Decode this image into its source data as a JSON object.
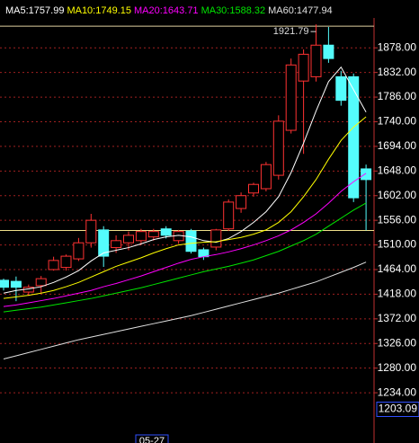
{
  "chart_data": {
    "type": "candlestick",
    "ylim": [
      1162,
      1922
    ],
    "yticks": [
      {
        "value": 1878,
        "label": "1878.00"
      },
      {
        "value": 1832,
        "label": "1832.00"
      },
      {
        "value": 1786,
        "label": "1786.00"
      },
      {
        "value": 1740,
        "label": "1740.00"
      },
      {
        "value": 1694,
        "label": "1694.00"
      },
      {
        "value": 1648,
        "label": "1648.00"
      },
      {
        "value": 1602,
        "label": "1602.00"
      },
      {
        "value": 1556,
        "label": "1556.00"
      },
      {
        "value": 1510,
        "label": "1510.00"
      },
      {
        "value": 1464,
        "label": "1464.00"
      },
      {
        "value": 1418,
        "label": "1418.00"
      },
      {
        "value": 1372,
        "label": "1372.00"
      },
      {
        "value": 1326,
        "label": "1326.00"
      },
      {
        "value": 1280,
        "label": "1280.00"
      },
      {
        "value": 1234,
        "label": "1234.00"
      }
    ],
    "grid": true,
    "up_color": "#ff3232",
    "down_color": "#54fcfc",
    "high_marker": 1921.79,
    "low_marker": 1203.09,
    "ref_line": 1537,
    "x_label": "05-27",
    "x_label_index": 10,
    "candles": {
      "open": [
        1444,
        1442,
        1422,
        1434,
        1464,
        1468,
        1484,
        1514,
        1538,
        1505,
        1514,
        1518,
        1525,
        1540,
        1518,
        1536,
        1501,
        1506,
        1540,
        1578,
        1607,
        1615,
        1640,
        1724,
        1816,
        1824,
        1883,
        1824,
        1824,
        1652
      ],
      "close": [
        1431,
        1431,
        1431,
        1447,
        1481,
        1489,
        1514,
        1556,
        1489,
        1518,
        1528,
        1535,
        1535,
        1528,
        1535,
        1498,
        1488,
        1538,
        1590,
        1602,
        1623,
        1660,
        1741,
        1846,
        1866,
        1883,
        1858,
        1780,
        1598,
        1632
      ],
      "high": [
        1447,
        1451,
        1436,
        1452,
        1488,
        1492,
        1523,
        1568,
        1545,
        1528,
        1535,
        1540,
        1540,
        1545,
        1538,
        1540,
        1505,
        1540,
        1595,
        1608,
        1626,
        1665,
        1752,
        1858,
        1875,
        1921.79,
        1917,
        1835,
        1830,
        1660
      ],
      "low": [
        1425,
        1405,
        1415,
        1420,
        1462,
        1462,
        1480,
        1505,
        1469,
        1495,
        1500,
        1510,
        1518,
        1522,
        1512,
        1494,
        1482,
        1500,
        1536,
        1570,
        1600,
        1610,
        1632,
        1718,
        1680,
        1815,
        1850,
        1770,
        1590,
        1537
      ]
    },
    "series": [
      {
        "name": "MA5:1757.99",
        "color": "#ffffff",
        "values": [
          1420,
          1425,
          1428,
          1432,
          1440,
          1450,
          1462,
          1480,
          1495,
          1500,
          1505,
          1512,
          1520,
          1525,
          1528,
          1525,
          1518,
          1515,
          1522,
          1535,
          1552,
          1572,
          1600,
          1645,
          1700,
          1760,
          1815,
          1842,
          1800,
          1757.99
        ]
      },
      {
        "name": "MA10:1749.15",
        "color": "#ffff00",
        "values": [
          1410,
          1413,
          1416,
          1420,
          1425,
          1432,
          1440,
          1450,
          1460,
          1470,
          1478,
          1486,
          1495,
          1503,
          1510,
          1513,
          1515,
          1516,
          1520,
          1524,
          1530,
          1538,
          1552,
          1572,
          1600,
          1632,
          1670,
          1705,
          1730,
          1749.15
        ]
      },
      {
        "name": "MA20:1643.71",
        "color": "#ff00ff",
        "values": [
          1395,
          1398,
          1402,
          1406,
          1410,
          1415,
          1420,
          1425,
          1432,
          1438,
          1445,
          1452,
          1460,
          1468,
          1476,
          1483,
          1488,
          1492,
          1497,
          1503,
          1510,
          1518,
          1527,
          1538,
          1552,
          1568,
          1588,
          1610,
          1628,
          1643.71
        ]
      },
      {
        "name": "MA30:1588.32",
        "color": "#00e600",
        "values": [
          1385,
          1388,
          1391,
          1394,
          1398,
          1402,
          1406,
          1410,
          1415,
          1420,
          1425,
          1430,
          1436,
          1442,
          1448,
          1454,
          1460,
          1465,
          1470,
          1476,
          1482,
          1490,
          1498,
          1508,
          1518,
          1530,
          1545,
          1560,
          1575,
          1588.32
        ]
      },
      {
        "name": "MA60:1477.94",
        "color": "#e0e0e0",
        "values": [
          1297,
          1303,
          1309,
          1315,
          1321,
          1327,
          1333,
          1338,
          1343,
          1348,
          1353,
          1358,
          1363,
          1368,
          1373,
          1378,
          1384,
          1390,
          1396,
          1402,
          1408,
          1414,
          1420,
          1427,
          1434,
          1441,
          1450,
          1459,
          1468,
          1477.94
        ]
      }
    ]
  }
}
